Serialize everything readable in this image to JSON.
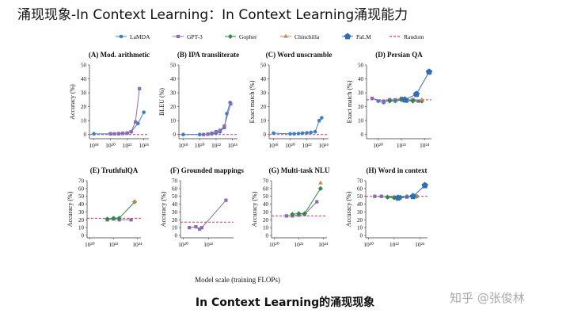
{
  "title": "涌现现象-In Context Learning：In Context Learning涌现能力",
  "caption": "In Context Learning的涌现现象",
  "watermark": "知乎 @张俊林",
  "xlabel": "Model scale (training FLOPs)",
  "legend": [
    {
      "name": "LaMDA",
      "color": "#3b7fc4",
      "marker": "circle"
    },
    {
      "name": "GPT-3",
      "color": "#8a6bb8",
      "marker": "square"
    },
    {
      "name": "Gopher",
      "color": "#2e8a3e",
      "marker": "diamond"
    },
    {
      "name": "Chinchilla",
      "color": "#c98657",
      "marker": "triangle"
    },
    {
      "name": "PaLM",
      "color": "#2f6db5",
      "marker": "pentagon"
    },
    {
      "name": "Random",
      "color": "#d6336c",
      "marker": "dash"
    }
  ],
  "chart_data": [
    {
      "type": "line",
      "title": "(A) Mod. arithmetic",
      "ylabel": "Accuracy (%)",
      "xscale": "log",
      "xlim": [
        3e+17,
        4e+24
      ],
      "xticks": [
        {
          "value": 1e+18,
          "label": "10¹⁸"
        },
        {
          "value": 1e+20,
          "label": "10²⁰"
        },
        {
          "value": 1e+22,
          "label": "10²²"
        },
        {
          "value": 1e+24,
          "label": "10²⁴"
        }
      ],
      "ylim": [
        -3,
        50
      ],
      "yticks": [
        0,
        10,
        20,
        30,
        40,
        50
      ],
      "random": 0,
      "series": [
        {
          "name": "LaMDA",
          "x": [
            1e+18,
            1e+20,
            1e+21,
            3e+21,
            1e+22,
            3e+22,
            2e+23,
            1e+24
          ],
          "values": [
            0.5,
            0.5,
            0.6,
            0.8,
            1,
            2,
            8,
            16
          ]
        },
        {
          "name": "GPT-3",
          "x": [
            1e+20,
            3e+20,
            1e+21,
            3e+21,
            1e+22,
            3e+22,
            1e+23,
            3e+23
          ],
          "values": [
            0.5,
            0.5,
            0.6,
            0.8,
            1,
            2,
            9,
            33
          ]
        }
      ]
    },
    {
      "type": "line",
      "title": "(B) IPA transliterate",
      "ylabel": "BLEU (%)",
      "xscale": "log",
      "xlim": [
        3e+17,
        4e+24
      ],
      "xticks": [
        {
          "value": 1e+18,
          "label": "10¹⁸"
        },
        {
          "value": 1e+20,
          "label": "10²⁰"
        },
        {
          "value": 1e+22,
          "label": "10²²"
        },
        {
          "value": 1e+24,
          "label": "10²⁴"
        }
      ],
      "ylim": [
        -3,
        50
      ],
      "yticks": [
        0,
        10,
        20,
        30,
        40,
        50
      ],
      "random": 0,
      "series": [
        {
          "name": "LaMDA",
          "x": [
            1e+18,
            1e+20,
            1e+21,
            3e+21,
            1e+22,
            3e+22,
            1e+23,
            2e+23,
            5e+23
          ],
          "values": [
            0,
            0,
            0.2,
            0.5,
            1,
            2,
            5,
            15,
            23
          ]
        },
        {
          "name": "GPT-3",
          "x": [
            3e+20,
            1e+21,
            3e+21,
            1e+22,
            3e+22,
            1e+23,
            6e+23
          ],
          "values": [
            0,
            0.3,
            1,
            2,
            3,
            6,
            22
          ]
        }
      ]
    },
    {
      "type": "line",
      "title": "(C) Word unscramble",
      "ylabel": "Exact match (%)",
      "xscale": "log",
      "xlim": [
        3e+17,
        4e+24
      ],
      "xticks": [
        {
          "value": 1e+18,
          "label": "10¹⁸"
        },
        {
          "value": 1e+20,
          "label": "10²⁰"
        },
        {
          "value": 1e+22,
          "label": "10²²"
        },
        {
          "value": 1e+24,
          "label": "10²⁴"
        }
      ],
      "ylim": [
        -3,
        50
      ],
      "yticks": [
        0,
        10,
        20,
        30,
        40,
        50
      ],
      "random": 0,
      "series": [
        {
          "name": "LaMDA",
          "x": [
            1e+18,
            1e+20,
            3e+20,
            1e+21,
            3e+21,
            1e+22,
            3e+22,
            1e+23,
            3e+23,
            6e+23
          ],
          "values": [
            1,
            0.5,
            0.5,
            0.7,
            1,
            1.2,
            1.5,
            2,
            10,
            12
          ]
        }
      ]
    },
    {
      "type": "line",
      "title": "(D) Persian QA",
      "ylabel": "Exact match (%)",
      "xscale": "log",
      "xlim": [
        1e+19,
        4e+24
      ],
      "xticks": [
        {
          "value": 1e+20,
          "label": "10²⁰"
        },
        {
          "value": 1e+22,
          "label": "10²²"
        },
        {
          "value": 1e+24,
          "label": "10²⁴"
        }
      ],
      "ylim": [
        -3,
        50
      ],
      "yticks": [
        0,
        10,
        20,
        30,
        40,
        50
      ],
      "random": 25,
      "series": [
        {
          "name": "LaMDA",
          "x": [
            1e+20,
            3e+20,
            1e+21,
            3e+21,
            1e+22,
            3e+22,
            1e+23
          ],
          "values": [
            24,
            23,
            25,
            24,
            25,
            24,
            25
          ]
        },
        {
          "name": "GPT-3",
          "x": [
            3e+19,
            3e+20,
            1e+21,
            3e+21,
            1e+22,
            3e+22,
            1e+23,
            3e+23
          ],
          "values": [
            26,
            24,
            25,
            25,
            26,
            25,
            25,
            24
          ]
        },
        {
          "name": "Gopher",
          "x": [
            1e+21,
            1e+22,
            1e+23,
            6e+23
          ],
          "values": [
            24,
            25,
            24,
            24
          ]
        },
        {
          "name": "Chinchilla",
          "x": [
            6e+23
          ],
          "values": [
            25
          ]
        },
        {
          "name": "PaLM",
          "x": [
            2e+22,
            2e+23,
            2.5e+24
          ],
          "values": [
            25,
            29,
            45
          ]
        }
      ]
    },
    {
      "type": "line",
      "title": "(E) TruthfulQA",
      "ylabel": "Accuracy (%)",
      "xscale": "log",
      "xlim": [
        6e+19,
        2e+24
      ],
      "xticks": [
        {
          "value": 1e+20,
          "label": "10²⁰"
        },
        {
          "value": 1e+22,
          "label": "10²²"
        },
        {
          "value": 1e+24,
          "label": "10²⁴"
        }
      ],
      "ylim": [
        -3,
        70
      ],
      "yticks": [
        0,
        10,
        20,
        30,
        40,
        50,
        60,
        70
      ],
      "random": 22,
      "series": [
        {
          "name": "GPT-3",
          "x": [
            3e+21,
            1e+22,
            3e+22,
            3e+23
          ],
          "values": [
            20,
            21,
            20,
            20
          ]
        },
        {
          "name": "Gopher",
          "x": [
            3e+21,
            1e+22,
            3e+22,
            6e+23
          ],
          "values": [
            21,
            22,
            22,
            43
          ]
        },
        {
          "name": "Chinchilla",
          "x": [
            6e+23
          ],
          "values": [
            43
          ]
        }
      ]
    },
    {
      "type": "line",
      "title": "(F) Grounded mappings",
      "ylabel": "Accuracy (%)",
      "xscale": "log",
      "xlim": [
        6e+19,
        1e+24
      ],
      "xticks": [
        {
          "value": 1e+20,
          "label": "10²⁰"
        },
        {
          "value": 1e+22,
          "label": "10²²"
        }
      ],
      "ylim": [
        -3,
        70
      ],
      "yticks": [
        0,
        10,
        20,
        30,
        40,
        50,
        60,
        70
      ],
      "random": 17,
      "series": [
        {
          "name": "GPT-3",
          "x": [
            3e+20,
            1e+21,
            2e+21,
            3e+21,
            2.5e+23
          ],
          "values": [
            10,
            11,
            8,
            10,
            45
          ]
        }
      ]
    },
    {
      "type": "line",
      "title": "(G) Multi-task NLU",
      "ylabel": "Accuracy (%)",
      "xscale": "log",
      "xlim": [
        6e+19,
        2e+24
      ],
      "xticks": [
        {
          "value": 1e+20,
          "label": "10²⁰"
        },
        {
          "value": 1e+22,
          "label": "10²²"
        },
        {
          "value": 1e+24,
          "label": "10²⁴"
        }
      ],
      "ylim": [
        -3,
        70
      ],
      "yticks": [
        0,
        10,
        20,
        30,
        40,
        50,
        60,
        70
      ],
      "random": 25,
      "series": [
        {
          "name": "GPT-3",
          "x": [
            1e+21,
            3e+21,
            1e+22,
            3e+22,
            3e+23
          ],
          "values": [
            25,
            25,
            26,
            27,
            43
          ]
        },
        {
          "name": "Gopher",
          "x": [
            3e+21,
            1e+22,
            3e+22,
            6e+23
          ],
          "values": [
            27,
            28,
            28,
            60
          ]
        },
        {
          "name": "Chinchilla",
          "x": [
            6e+23
          ],
          "values": [
            67
          ]
        }
      ]
    },
    {
      "type": "line",
      "title": "(H) Word in context",
      "ylabel": "Accuracy (%)",
      "xscale": "log",
      "xlim": [
        6e+19,
        4e+24
      ],
      "xticks": [
        {
          "value": 1e+20,
          "label": "10²⁰"
        },
        {
          "value": 1e+22,
          "label": "10²²"
        },
        {
          "value": 1e+24,
          "label": "10²⁴"
        }
      ],
      "ylim": [
        -3,
        70
      ],
      "yticks": [
        0,
        10,
        20,
        30,
        40,
        50,
        60,
        70
      ],
      "random": 50,
      "series": [
        {
          "name": "LaMDA",
          "x": [
            1e+21,
            1e+22,
            1e+23
          ],
          "values": [
            50,
            49,
            50
          ]
        },
        {
          "name": "GPT-3",
          "x": [
            3e+20,
            1e+21,
            3e+21,
            1e+22,
            3e+22,
            1e+23,
            3e+23
          ],
          "values": [
            50,
            50,
            49,
            49,
            48,
            49,
            50
          ]
        },
        {
          "name": "Gopher",
          "x": [
            3e+21,
            1e+22,
            3e+22,
            6e+23
          ],
          "values": [
            49,
            48,
            49,
            50
          ]
        },
        {
          "name": "Chinchilla",
          "x": [
            6e+23
          ],
          "values": [
            50
          ]
        },
        {
          "name": "PaLM",
          "x": [
            2e+22,
            3e+23,
            2.5e+24
          ],
          "values": [
            48,
            50,
            64
          ]
        }
      ]
    }
  ]
}
